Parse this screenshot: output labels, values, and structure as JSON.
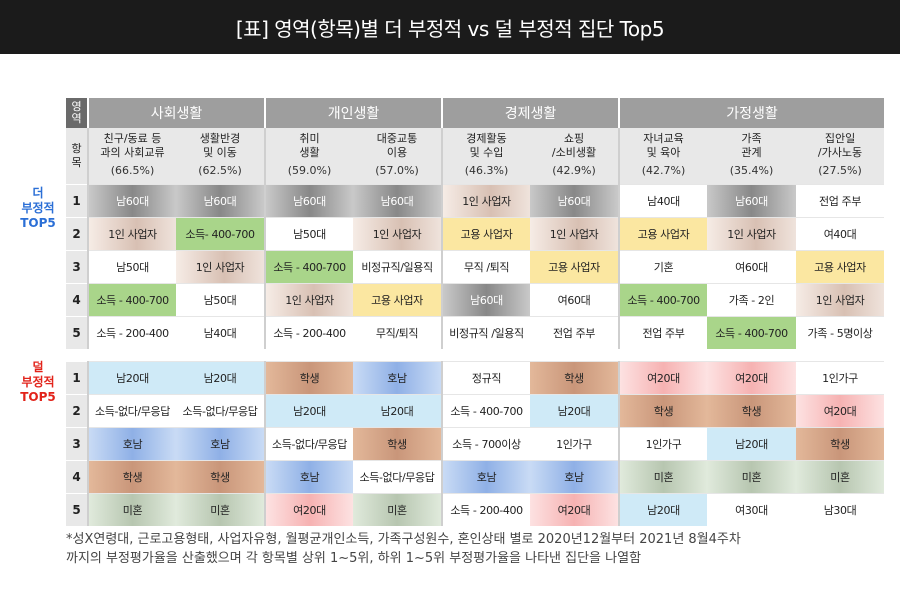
{
  "title": "[표] 영역(항목)별 더 부정적 vs 덜 부정적 집단 Top5",
  "header": {
    "area_label": "영역",
    "item_label": "항목",
    "groups": [
      "사회생활",
      "개인생활",
      "경제생활",
      "가정생활"
    ],
    "items": [
      {
        "name": "친구/동료 등\n과의 사회교류",
        "pct": "(66.5%)"
      },
      {
        "name": "생활반경\n및 이동",
        "pct": "(62.5%)"
      },
      {
        "name": "취미\n생활",
        "pct": "(59.0%)"
      },
      {
        "name": "대중교통\n이용",
        "pct": "(57.0%)"
      },
      {
        "name": "경제활동\n및 수입",
        "pct": "(46.3%)"
      },
      {
        "name": "쇼핑\n/소비생활",
        "pct": "(42.9%)"
      },
      {
        "name": "자녀교육\n및 육아",
        "pct": "(42.7%)"
      },
      {
        "name": "가족\n관계",
        "pct": "(35.4%)"
      },
      {
        "name": "집안일\n/가사노동",
        "pct": "(27.5%)"
      }
    ]
  },
  "side_labels": {
    "more_negative": "더\n부정적\nTOP5",
    "less_negative": "덜\n부정적\nTOP5"
  },
  "more_negative": [
    {
      "rank": "1",
      "cells": [
        [
          "남60대",
          "grey"
        ],
        [
          "남60대",
          "grey"
        ],
        [
          "남60대",
          "grey"
        ],
        [
          "남60대",
          "grey"
        ],
        [
          "1인 사업자",
          "beige"
        ],
        [
          "남60대",
          "grey"
        ],
        [
          "남40대",
          "none"
        ],
        [
          "남60대",
          "grey"
        ],
        [
          "전업 주부",
          "none"
        ]
      ]
    },
    {
      "rank": "2",
      "cells": [
        [
          "1인 사업자",
          "beige"
        ],
        [
          "소득- 400-700",
          "green"
        ],
        [
          "남50대",
          "none"
        ],
        [
          "1인 사업자",
          "beige"
        ],
        [
          "고용 사업자",
          "yellow"
        ],
        [
          "1인 사업자",
          "beige"
        ],
        [
          "고용 사업자",
          "yellow"
        ],
        [
          "1인 사업자",
          "beige"
        ],
        [
          "여40대",
          "none"
        ]
      ]
    },
    {
      "rank": "3",
      "cells": [
        [
          "남50대",
          "none"
        ],
        [
          "1인 사업자",
          "beige"
        ],
        [
          "소득 - 400-700",
          "green"
        ],
        [
          "비정규직/일용직",
          "none"
        ],
        [
          "무직 /퇴직",
          "none"
        ],
        [
          "고용 사업자",
          "yellow"
        ],
        [
          "기혼",
          "none"
        ],
        [
          "여60대",
          "none"
        ],
        [
          "고용 사업자",
          "yellow"
        ]
      ]
    },
    {
      "rank": "4",
      "cells": [
        [
          "소득 - 400-700",
          "green"
        ],
        [
          "남50대",
          "none"
        ],
        [
          "1인 사업자",
          "beige"
        ],
        [
          "고용 사업자",
          "yellow"
        ],
        [
          "남60대",
          "grey"
        ],
        [
          "여60대",
          "none"
        ],
        [
          "소득 - 400-700",
          "green"
        ],
        [
          "가족 - 2인",
          "none"
        ],
        [
          "1인 사업자",
          "beige"
        ]
      ]
    },
    {
      "rank": "5",
      "cells": [
        [
          "소득 - 200-400",
          "none"
        ],
        [
          "남40대",
          "none"
        ],
        [
          "소득 - 200-400",
          "none"
        ],
        [
          "무직/퇴직",
          "none"
        ],
        [
          "비정규직 /일용직",
          "none"
        ],
        [
          "전업 주부",
          "none"
        ],
        [
          "전업 주부",
          "none"
        ],
        [
          "소득 - 400-700",
          "green"
        ],
        [
          "가족 - 5명이상",
          "none"
        ]
      ]
    }
  ],
  "less_negative": [
    {
      "rank": "1",
      "cells": [
        [
          "남20대",
          "lblue"
        ],
        [
          "남20대",
          "lblue"
        ],
        [
          "학생",
          "brown"
        ],
        [
          "호남",
          "blue"
        ],
        [
          "정규직",
          "none"
        ],
        [
          "학생",
          "brown"
        ],
        [
          "여20대",
          "pink"
        ],
        [
          "여20대",
          "pink"
        ],
        [
          "1인가구",
          "none"
        ]
      ]
    },
    {
      "rank": "2",
      "cells": [
        [
          "소득-없다/무응답",
          "none"
        ],
        [
          "소득-없다/무응답",
          "none"
        ],
        [
          "남20대",
          "lblue"
        ],
        [
          "남20대",
          "lblue"
        ],
        [
          "소득 - 400-700",
          "none"
        ],
        [
          "남20대",
          "lblue"
        ],
        [
          "학생",
          "brown"
        ],
        [
          "학생",
          "brown"
        ],
        [
          "여20대",
          "pink"
        ]
      ]
    },
    {
      "rank": "3",
      "cells": [
        [
          "호남",
          "blue"
        ],
        [
          "호남",
          "blue"
        ],
        [
          "소득-없다/무응답",
          "none"
        ],
        [
          "학생",
          "brown"
        ],
        [
          "소득 - 700이상",
          "none"
        ],
        [
          "1인가구",
          "none"
        ],
        [
          "1인가구",
          "none"
        ],
        [
          "남20대",
          "lblue"
        ],
        [
          "학생",
          "brown"
        ]
      ]
    },
    {
      "rank": "4",
      "cells": [
        [
          "학생",
          "brown"
        ],
        [
          "학생",
          "brown"
        ],
        [
          "호남",
          "blue"
        ],
        [
          "소득-없다/무응답",
          "none"
        ],
        [
          "호남",
          "blue"
        ],
        [
          "호남",
          "blue"
        ],
        [
          "미혼",
          "sage"
        ],
        [
          "미혼",
          "sage"
        ],
        [
          "미혼",
          "sage"
        ]
      ]
    },
    {
      "rank": "5",
      "cells": [
        [
          "미혼",
          "sage"
        ],
        [
          "미혼",
          "sage"
        ],
        [
          "여20대",
          "pink"
        ],
        [
          "미혼",
          "sage"
        ],
        [
          "소득 - 200-400",
          "none"
        ],
        [
          "여20대",
          "pink"
        ],
        [
          "남20대",
          "lblue"
        ],
        [
          "여30대",
          "none"
        ],
        [
          "남30대",
          "none"
        ]
      ]
    }
  ],
  "footnote": "*성X연령대, 근로고용형태, 사업자유형, 월평균개인소득, 가족구성원수, 혼인상태 별로 2020년12월부터 2021년 8월4주차\n까지의 부정평가율을 산출했으며 각 항목별 상위 1~5위, 하위 1~5위 부정평가율을 나타낸 집단을 나열함"
}
